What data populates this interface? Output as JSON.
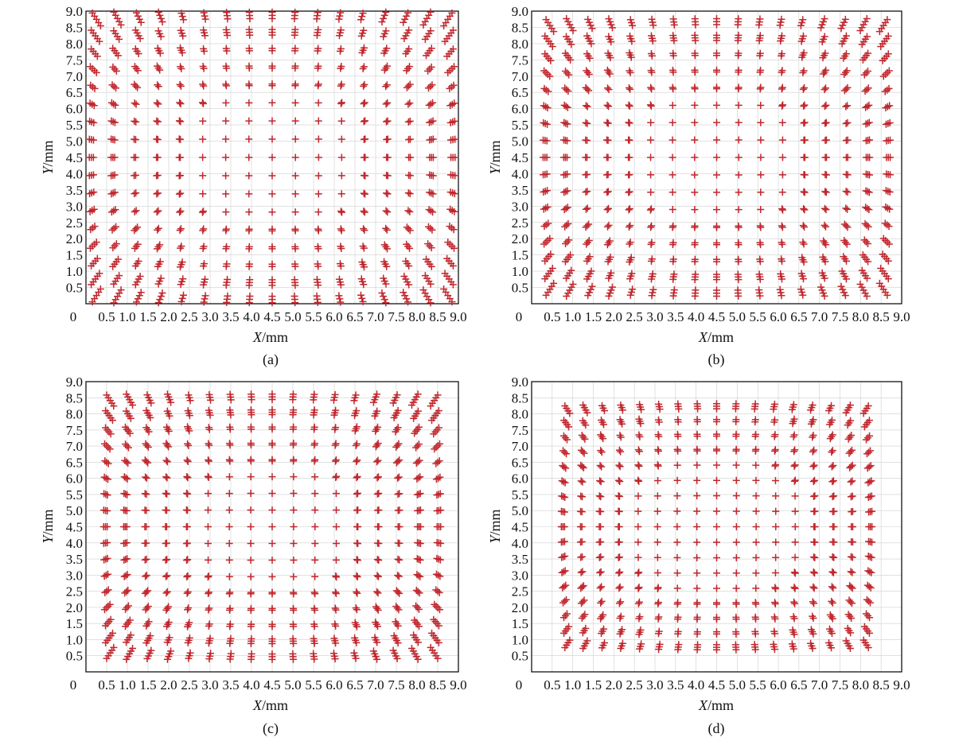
{
  "chart_data": [
    {
      "panel": "a",
      "type": "scatter",
      "marker": "+",
      "caption": "(a)",
      "xlabel_var": "X",
      "xlabel_unit": "/mm",
      "ylabel_var": "Y",
      "ylabel_unit": "/mm",
      "xlim": [
        0,
        9.0
      ],
      "ylim": [
        0,
        9.0
      ],
      "grid": true,
      "x_ticks": [
        "0",
        "0.5",
        "1.0",
        "1.5",
        "2.0",
        "2.5",
        "3.0",
        "3.5",
        "4.0",
        "4.5",
        "5.0",
        "5.5",
        "6.0",
        "6.5",
        "7.0",
        "7.5",
        "8.0",
        "8.5",
        "9.0"
      ],
      "y_ticks": [
        "0.5",
        "1.0",
        "1.5",
        "2.0",
        "2.5",
        "3.0",
        "3.5",
        "4.0",
        "4.5",
        "5.0",
        "5.5",
        "6.0",
        "6.5",
        "7.0",
        "7.5",
        "8.0",
        "8.5",
        "9.0"
      ],
      "grid_model": {
        "center": 4.5,
        "half_extent": 4.5,
        "n": 17,
        "k": 0.03,
        "cluster": 5,
        "cluster_spacing": 0.14
      }
    },
    {
      "panel": "b",
      "type": "scatter",
      "marker": "+",
      "caption": "(b)",
      "xlabel_var": "X",
      "xlabel_unit": "/mm",
      "ylabel_var": "Y",
      "ylabel_unit": "/mm",
      "xlim": [
        0,
        9.0
      ],
      "ylim": [
        0,
        9.0
      ],
      "grid": true,
      "x_ticks": [
        "0",
        "0.5",
        "1.0",
        "1.5",
        "2.0",
        "2.5",
        "3.0",
        "3.5",
        "4.0",
        "4.5",
        "5.0",
        "5.5",
        "6.0",
        "6.5",
        "7.0",
        "7.5",
        "8.0",
        "8.5",
        "9.0"
      ],
      "y_ticks": [
        "0.5",
        "1.0",
        "1.5",
        "2.0",
        "2.5",
        "3.0",
        "3.5",
        "4.0",
        "4.5",
        "5.0",
        "5.5",
        "6.0",
        "6.5",
        "7.0",
        "7.5",
        "8.0",
        "8.5",
        "9.0"
      ],
      "grid_model": {
        "center": 4.5,
        "half_extent": 4.3,
        "n": 17,
        "k": 0.03,
        "cluster": 5,
        "cluster_spacing": 0.13
      }
    },
    {
      "panel": "c",
      "type": "scatter",
      "marker": "+",
      "caption": "(c)",
      "xlabel_var": "X",
      "xlabel_unit": "/mm",
      "ylabel_var": "Y",
      "ylabel_unit": "/mm",
      "xlim": [
        0,
        9.0
      ],
      "ylim": [
        0,
        9.0
      ],
      "grid": true,
      "x_ticks": [
        "0",
        "0.5",
        "1.0",
        "1.5",
        "2.0",
        "2.5",
        "3.0",
        "3.5",
        "4.0",
        "4.5",
        "5.0",
        "5.5",
        "6.0",
        "6.5",
        "7.0",
        "7.5",
        "8.0",
        "8.5",
        "9.0"
      ],
      "y_ticks": [
        "0.5",
        "1.0",
        "1.5",
        "2.0",
        "2.5",
        "3.0",
        "3.5",
        "4.0",
        "4.5",
        "5.0",
        "5.5",
        "6.0",
        "6.5",
        "7.0",
        "7.5",
        "8.0",
        "8.5",
        "9.0"
      ],
      "grid_model": {
        "center": 4.5,
        "half_extent": 4.15,
        "n": 17,
        "k": 0.03,
        "cluster": 5,
        "cluster_spacing": 0.12
      }
    },
    {
      "panel": "d",
      "type": "scatter",
      "marker": "+",
      "caption": "(d)",
      "xlabel_var": "X",
      "xlabel_unit": "/mm",
      "ylabel_var": "Y",
      "ylabel_unit": "/mm",
      "xlim": [
        0,
        9.0
      ],
      "ylim": [
        0,
        9.0
      ],
      "grid": true,
      "x_ticks": [
        "0",
        "0.5",
        "1.0",
        "1.5",
        "2.0",
        "2.5",
        "3.0",
        "3.5",
        "4.0",
        "4.5",
        "5.0",
        "5.5",
        "6.0",
        "6.5",
        "7.0",
        "7.5",
        "8.0",
        "8.5",
        "9.0"
      ],
      "y_ticks": [
        "0.5",
        "1.0",
        "1.5",
        "2.0",
        "2.5",
        "3.0",
        "3.5",
        "4.0",
        "4.5",
        "5.0",
        "5.5",
        "6.0",
        "6.5",
        "7.0",
        "7.5",
        "8.0",
        "8.5",
        "9.0"
      ],
      "grid_model": {
        "center": 4.5,
        "half_extent": 3.85,
        "n": 17,
        "k": 0.03,
        "cluster": 4,
        "cluster_spacing": 0.11
      }
    }
  ],
  "colors": {
    "marker": "#c0272d",
    "grid": "#cfcfcf",
    "frame": "#000000",
    "text": "#111111"
  }
}
